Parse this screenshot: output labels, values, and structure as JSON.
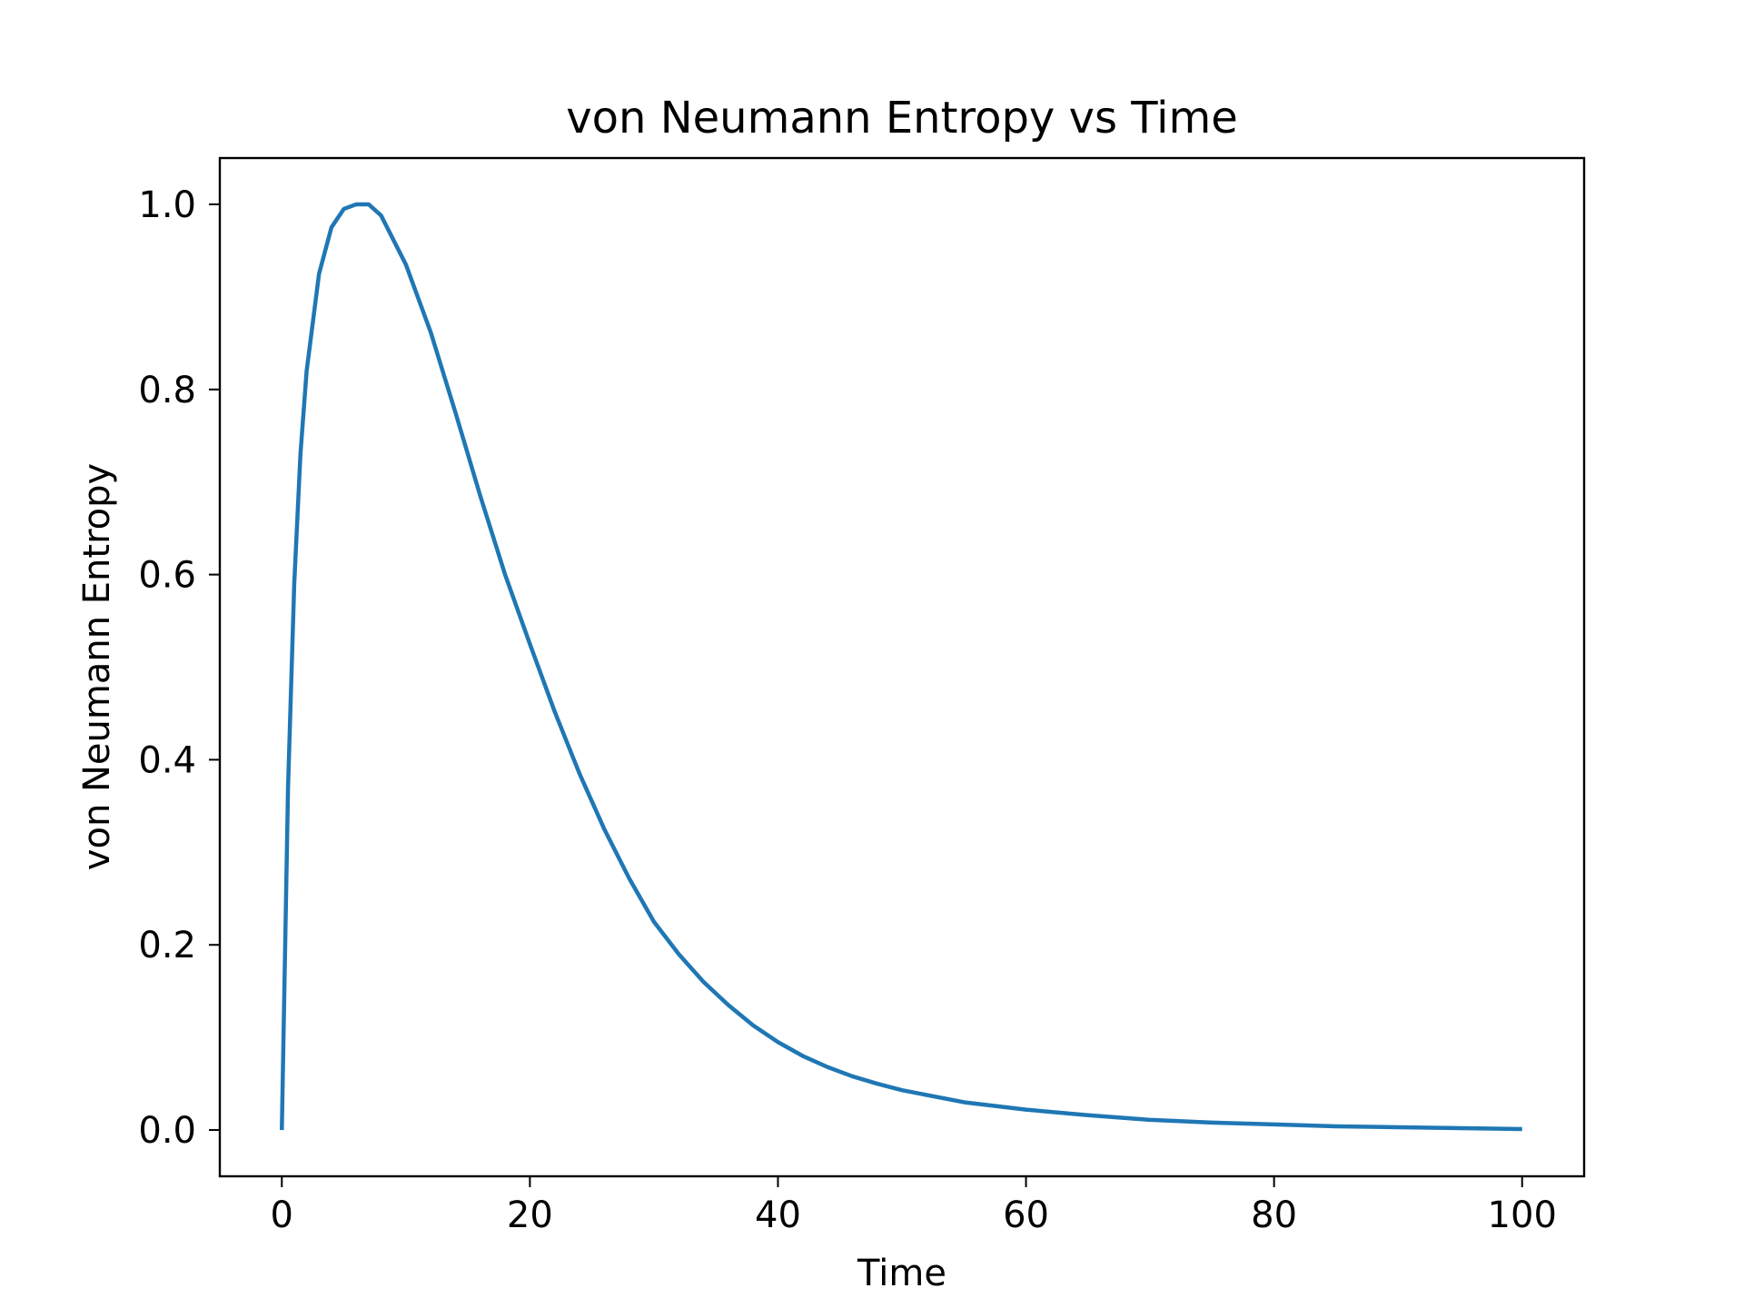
{
  "chart_data": {
    "type": "line",
    "title": "von Neumann Entropy vs Time",
    "xlabel": "Time",
    "ylabel": "von Neumann Entropy",
    "xlim": [
      -5,
      105
    ],
    "ylim": [
      -0.05,
      1.05
    ],
    "x_ticks": [
      0,
      20,
      40,
      60,
      80,
      100
    ],
    "x_tick_labels": [
      "0",
      "20",
      "40",
      "60",
      "80",
      "100"
    ],
    "y_ticks": [
      0.0,
      0.2,
      0.4,
      0.6,
      0.8,
      1.0
    ],
    "y_tick_labels": [
      "0.0",
      "0.2",
      "0.4",
      "0.6",
      "0.8",
      "1.0"
    ],
    "grid": false,
    "legend": "none",
    "line_color": "#1f77b4",
    "series": [
      {
        "x": [
          0,
          0.5,
          1,
          1.5,
          2,
          3,
          4,
          5,
          6,
          7,
          8,
          10,
          12,
          14,
          16,
          18,
          20,
          22,
          24,
          26,
          28,
          30,
          32,
          34,
          36,
          38,
          40,
          42,
          44,
          46,
          48,
          50,
          55,
          60,
          65,
          70,
          75,
          80,
          85,
          90,
          95,
          100
        ],
        "y": [
          0.0,
          0.37,
          0.59,
          0.73,
          0.82,
          0.925,
          0.975,
          0.995,
          1.0,
          1.0,
          0.988,
          0.935,
          0.862,
          0.775,
          0.685,
          0.6,
          0.525,
          0.452,
          0.385,
          0.325,
          0.272,
          0.225,
          0.19,
          0.16,
          0.135,
          0.113,
          0.095,
          0.08,
          0.068,
          0.058,
          0.05,
          0.043,
          0.03,
          0.022,
          0.016,
          0.011,
          0.008,
          0.006,
          0.004,
          0.003,
          0.002,
          0.001
        ]
      }
    ]
  }
}
